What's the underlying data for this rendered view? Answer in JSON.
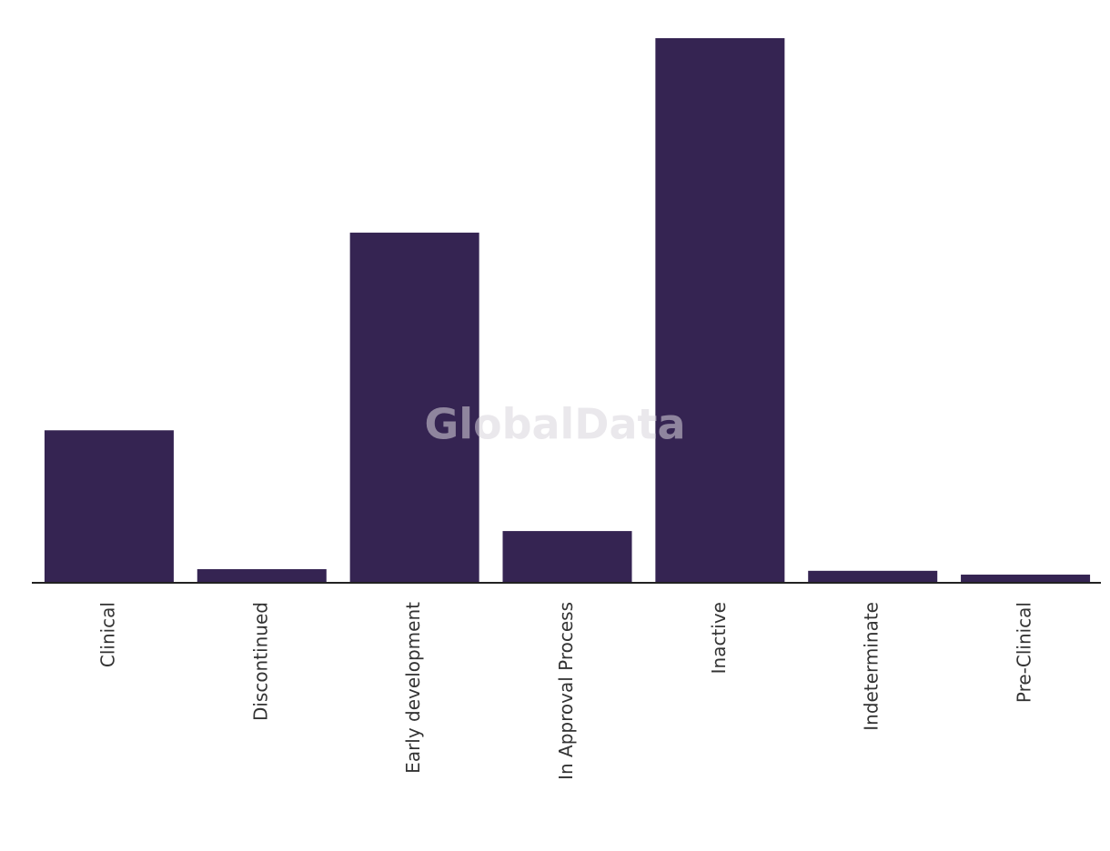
{
  "chart_data": {
    "type": "bar",
    "watermark": "GlobalData",
    "categories": [
      "Clinical",
      "Discontinued",
      "Early development",
      "In Approval Process",
      "Inactive",
      "Indeterminate",
      "Pre-Clinical"
    ],
    "values": [
      28,
      2.5,
      64.3,
      9.5,
      100,
      2.2,
      1.5
    ],
    "color": "#352452",
    "ylim": [
      0,
      100
    ]
  }
}
